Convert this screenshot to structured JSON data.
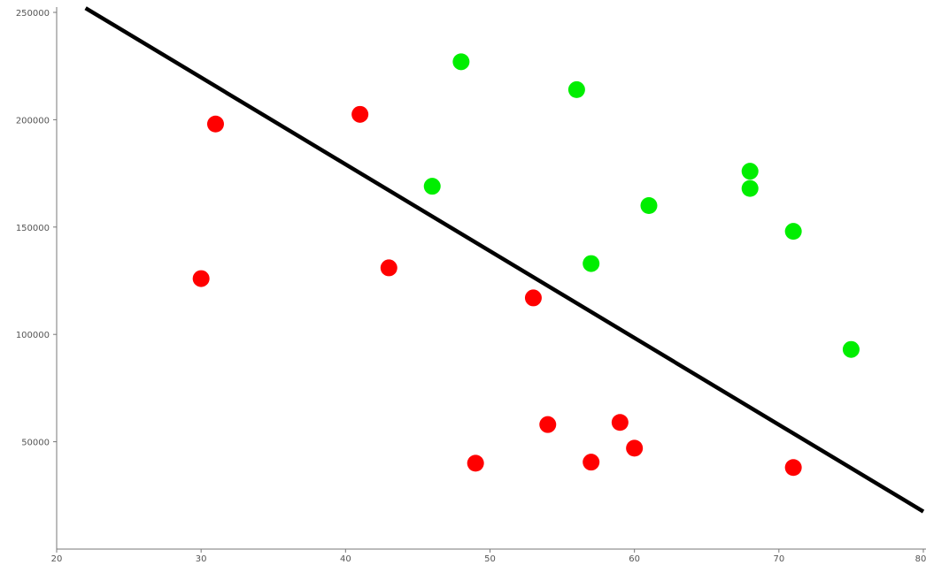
{
  "chart_data": {
    "type": "scatter",
    "title": "",
    "xlabel": "",
    "ylabel": "",
    "xlim": [
      20,
      80
    ],
    "ylim": [
      0,
      250000
    ],
    "grid": false,
    "legend": "none",
    "x_ticks": [
      20,
      30,
      40,
      50,
      60,
      70,
      80
    ],
    "y_ticks": [
      50000,
      100000,
      150000,
      200000,
      250000
    ],
    "x_tick_labels": [
      "20",
      "30",
      "40",
      "50",
      "60",
      "70",
      "80"
    ],
    "y_tick_labels": [
      "50000",
      "100000",
      "150000",
      "200000",
      "250000"
    ],
    "series": [
      {
        "color": "#ff0000",
        "points": [
          {
            "x": 30,
            "y": 126000
          },
          {
            "x": 31,
            "y": 198000
          },
          {
            "x": 41,
            "y": 202500
          },
          {
            "x": 43,
            "y": 131000
          },
          {
            "x": 49,
            "y": 40000
          },
          {
            "x": 53,
            "y": 117000
          },
          {
            "x": 54,
            "y": 58000
          },
          {
            "x": 57,
            "y": 40500
          },
          {
            "x": 59,
            "y": 59000
          },
          {
            "x": 60,
            "y": 47000
          },
          {
            "x": 71,
            "y": 38000
          }
        ]
      },
      {
        "color": "#00ee00",
        "points": [
          {
            "x": 46,
            "y": 169000
          },
          {
            "x": 48,
            "y": 227000
          },
          {
            "x": 56,
            "y": 214000
          },
          {
            "x": 57,
            "y": 133000
          },
          {
            "x": 61,
            "y": 160000
          },
          {
            "x": 68,
            "y": 176000
          },
          {
            "x": 68,
            "y": 168000
          },
          {
            "x": 71,
            "y": 148000
          },
          {
            "x": 75,
            "y": 93000
          }
        ]
      }
    ],
    "decision_line": {
      "color": "#000000",
      "points": [
        {
          "x": 22,
          "y": 252000
        },
        {
          "x": 80,
          "y": 17500
        }
      ]
    }
  }
}
